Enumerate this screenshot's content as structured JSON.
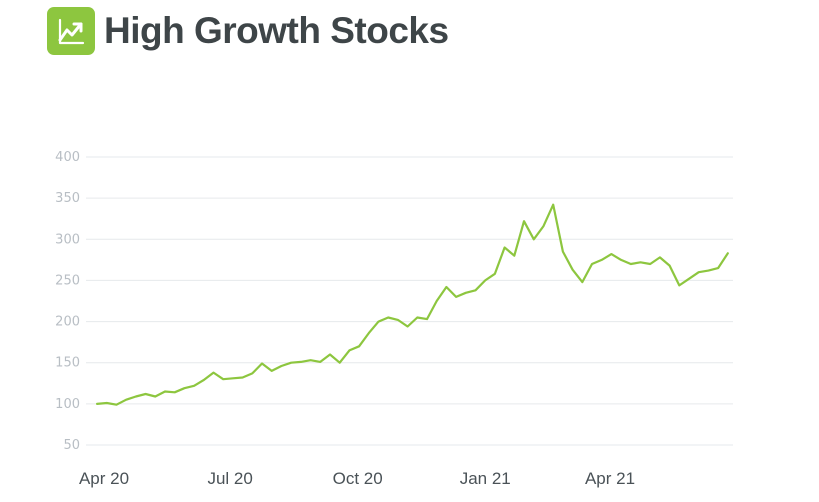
{
  "header": {
    "title": "High Growth Stocks",
    "icon": "trending-up-icon",
    "icon_color": "#8dc63f"
  },
  "chart_data": {
    "type": "line",
    "title": "High Growth Stocks",
    "xlabel": "",
    "ylabel": "",
    "ylim": [
      40,
      410
    ],
    "y_ticks": [
      "50",
      "100",
      "150",
      "200",
      "250",
      "300",
      "350",
      "400"
    ],
    "x_ticks": [
      "Apr 20",
      "Jul 20",
      "Oct 20",
      "Jan 21",
      "Apr 21"
    ],
    "grid": true,
    "legend": "none",
    "line_color": "#8dc63f",
    "series": [
      {
        "x": [
          "2020-03-27",
          "2020-04-03",
          "2020-04-10",
          "2020-04-17",
          "2020-04-24",
          "2020-05-01",
          "2020-05-08",
          "2020-05-15",
          "2020-05-22",
          "2020-05-29",
          "2020-06-05",
          "2020-06-12",
          "2020-06-19",
          "2020-06-26",
          "2020-07-03",
          "2020-07-10",
          "2020-07-17",
          "2020-07-24",
          "2020-07-31",
          "2020-08-07",
          "2020-08-14",
          "2020-08-21",
          "2020-08-28",
          "2020-09-04",
          "2020-09-11",
          "2020-09-18",
          "2020-09-25",
          "2020-10-02",
          "2020-10-09",
          "2020-10-16",
          "2020-10-23",
          "2020-10-30",
          "2020-11-06",
          "2020-11-13",
          "2020-11-20",
          "2020-11-27",
          "2020-12-04",
          "2020-12-11",
          "2020-12-18",
          "2020-12-25",
          "2021-01-01",
          "2021-01-08",
          "2021-01-15",
          "2021-01-22",
          "2021-01-29",
          "2021-02-05",
          "2021-02-12",
          "2021-02-19",
          "2021-02-26",
          "2021-03-05",
          "2021-03-12",
          "2021-03-19",
          "2021-03-26",
          "2021-04-02",
          "2021-04-09",
          "2021-04-16",
          "2021-04-23",
          "2021-04-30",
          "2021-05-07",
          "2021-05-14",
          "2021-05-21",
          "2021-05-28",
          "2021-06-04",
          "2021-06-11",
          "2021-06-18",
          "2021-06-25"
        ],
        "y": [
          100,
          101,
          99,
          105,
          109,
          112,
          109,
          115,
          114,
          119,
          122,
          129,
          138,
          130,
          131,
          132,
          137,
          149,
          140,
          146,
          150,
          151,
          153,
          151,
          160,
          150,
          165,
          170,
          186,
          200,
          205,
          202,
          194,
          205,
          203,
          225,
          242,
          230,
          235,
          238,
          250,
          258,
          290,
          280,
          322,
          300,
          316,
          342,
          285,
          263,
          248,
          270,
          275,
          282,
          275,
          270,
          272,
          270,
          278,
          268,
          244,
          252,
          260,
          262,
          265,
          283
        ]
      }
    ]
  }
}
